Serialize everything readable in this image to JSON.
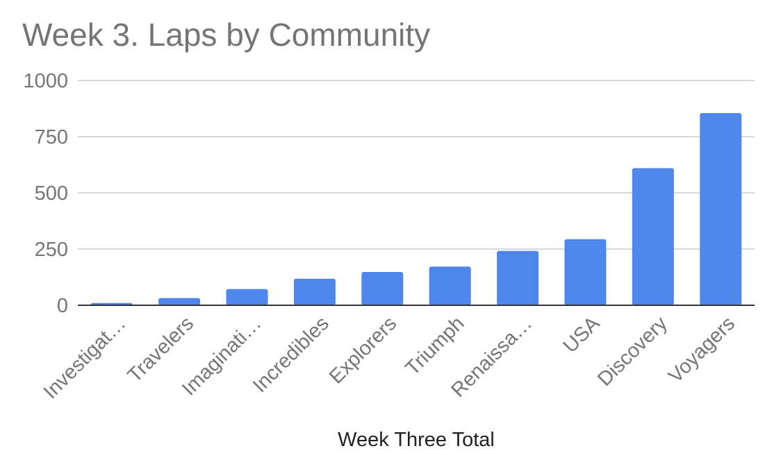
{
  "chart_data": {
    "type": "bar",
    "title": "Week 3. Laps by Community",
    "xlabel": "Week Three Total",
    "ylabel": "",
    "ylim": [
      0,
      1000
    ],
    "yticks": [
      "0",
      "250",
      "500",
      "750",
      "1000"
    ],
    "ytick_values": [
      0,
      250,
      500,
      750,
      1000
    ],
    "grid": true,
    "categories": [
      "Investigat…",
      "Travelers",
      "Imaginati…",
      "Incredibles",
      "Explorers",
      "Triumph",
      "Renaissa…",
      "USA",
      "Discovery",
      "Voyagers"
    ],
    "values": [
      10,
      32,
      72,
      118,
      148,
      172,
      242,
      294,
      610,
      855
    ],
    "bar_color": "#4f86ec"
  }
}
